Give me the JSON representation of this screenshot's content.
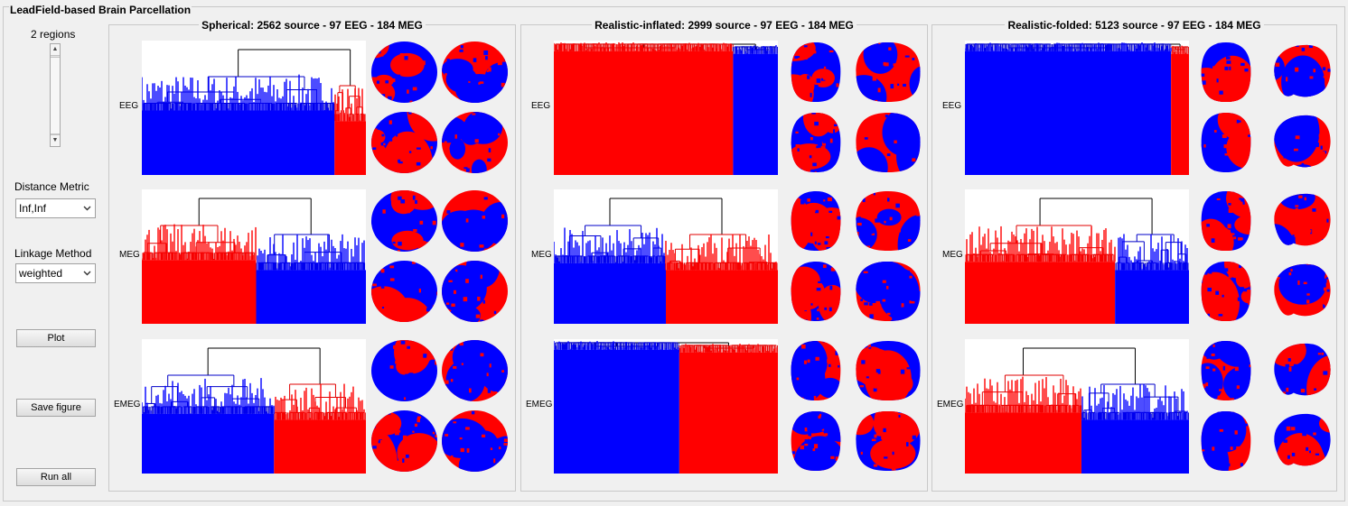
{
  "window": {
    "title": "LeadField-based Brain Parcellation"
  },
  "controls": {
    "regions_label": "2 regions",
    "regions_value": 2,
    "distance_metric_label": "Distance Metric",
    "distance_metric_value": "Inf,Inf",
    "linkage_method_label": "Linkage Method",
    "linkage_method_value": "weighted",
    "plot_button": "Plot",
    "save_button": "Save figure",
    "run_all_button": "Run all"
  },
  "colors": {
    "red": "#ff0000",
    "blue": "#0000ff",
    "tree_red": "#e00000",
    "tree_blue": "#0000c8",
    "black": "#000000"
  },
  "rows": [
    "EEG",
    "MEG",
    "EMEG"
  ],
  "panels": [
    {
      "title": "Spherical: 2562 source - 97 EEG - 184 MEG",
      "shape": "sphere",
      "dendrograms": [
        {
          "left_color": "blue",
          "split": 0.86,
          "style": "tall"
        },
        {
          "left_color": "red",
          "split": 0.51,
          "style": "tall"
        },
        {
          "left_color": "blue",
          "split": 0.59,
          "style": "tall"
        }
      ]
    },
    {
      "title": "Realistic-inflated: 2999 source - 97 EEG - 184 MEG",
      "shape": "inflated",
      "dendrograms": [
        {
          "left_color": "red",
          "split": 0.8,
          "style": "flat"
        },
        {
          "left_color": "blue",
          "split": 0.5,
          "style": "tall"
        },
        {
          "left_color": "blue",
          "split": 0.56,
          "style": "flat"
        }
      ]
    },
    {
      "title": "Realistic-folded: 5123 source - 97 EEG - 184 MEG",
      "shape": "folded",
      "dendrograms": [
        {
          "left_color": "blue",
          "split": 0.92,
          "style": "flat"
        },
        {
          "left_color": "red",
          "split": 0.67,
          "style": "tall"
        },
        {
          "left_color": "red",
          "split": 0.52,
          "style": "tall"
        }
      ]
    }
  ]
}
